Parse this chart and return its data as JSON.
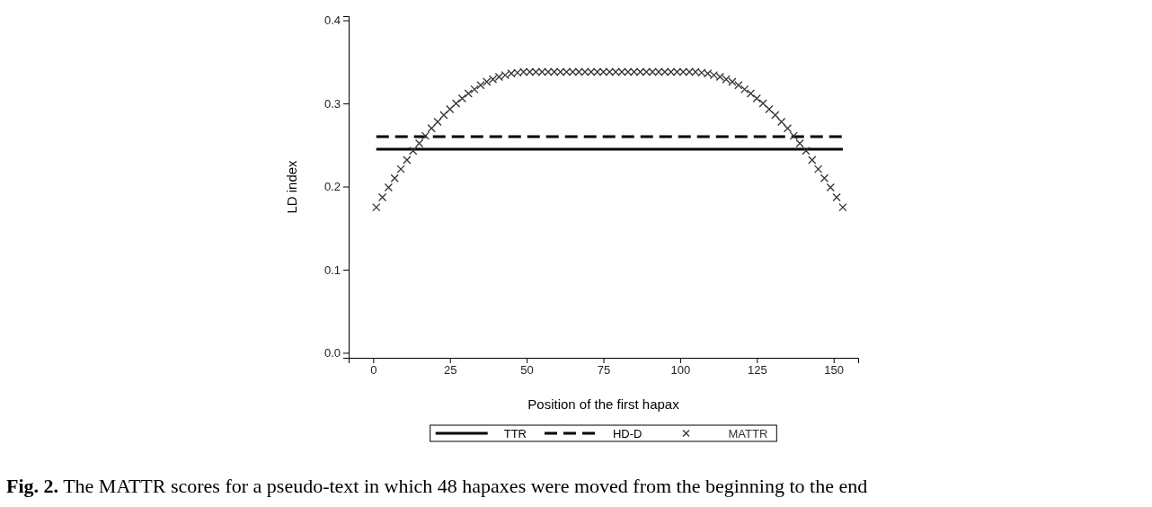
{
  "chart_data": {
    "type": "line",
    "xlabel": "Position of the first hapax",
    "ylabel": "LD index",
    "xlim": [
      -8,
      158
    ],
    "xticks": [
      0,
      25,
      50,
      75,
      100,
      125,
      150
    ],
    "ylim": [
      -0.006,
      0.405
    ],
    "yticks": [
      {
        "value": 0,
        "label": "0.0"
      },
      0.1,
      0.2,
      0.3,
      0.4
    ],
    "legend": "bottom",
    "annotations": [
      "Fig. 2. The MATTR scores for a pseudo-text in which 48 hapaxes were moved from the beginning to the end"
    ],
    "series": [
      {
        "name": "TTR",
        "line_style": "solid",
        "color": "#000000",
        "x": [
          1,
          153
        ],
        "values": [
          0.245,
          0.245
        ]
      },
      {
        "name": "HD-D",
        "line_style": "dashed",
        "color": "#000000",
        "x": [
          1,
          153
        ],
        "values": [
          0.26,
          0.26
        ]
      },
      {
        "name": "MATTR",
        "type": "scatter",
        "marker": "cross",
        "color": "#333333",
        "x": [
          1,
          3,
          5,
          7,
          9,
          11,
          13,
          15,
          17,
          19,
          21,
          23,
          25,
          27,
          29,
          31,
          33,
          35,
          37,
          39,
          41,
          43,
          45,
          47,
          49,
          51,
          53,
          55,
          57,
          59,
          61,
          63,
          65,
          67,
          69,
          71,
          73,
          75,
          77,
          79,
          81,
          83,
          85,
          87,
          89,
          91,
          93,
          95,
          97,
          99,
          101,
          103,
          105,
          107,
          109,
          111,
          113,
          115,
          117,
          119,
          121,
          123,
          125,
          127,
          129,
          131,
          133,
          135,
          137,
          139,
          141,
          143,
          145,
          147,
          149,
          151,
          153
        ],
        "values": [
          0.175,
          0.187,
          0.199,
          0.21,
          0.221,
          0.232,
          0.243,
          0.252,
          0.261,
          0.27,
          0.278,
          0.286,
          0.293,
          0.3,
          0.306,
          0.312,
          0.317,
          0.322,
          0.326,
          0.329,
          0.332,
          0.334,
          0.336,
          0.337,
          0.338,
          0.338,
          0.338,
          0.338,
          0.338,
          0.338,
          0.338,
          0.338,
          0.338,
          0.338,
          0.338,
          0.338,
          0.338,
          0.338,
          0.338,
          0.338,
          0.338,
          0.338,
          0.338,
          0.338,
          0.338,
          0.338,
          0.338,
          0.338,
          0.338,
          0.338,
          0.338,
          0.338,
          0.338,
          0.337,
          0.336,
          0.334,
          0.332,
          0.329,
          0.326,
          0.322,
          0.317,
          0.312,
          0.306,
          0.3,
          0.293,
          0.286,
          0.278,
          0.27,
          0.261,
          0.252,
          0.243,
          0.232,
          0.221,
          0.21,
          0.199,
          0.187,
          0.175
        ]
      }
    ]
  }
}
